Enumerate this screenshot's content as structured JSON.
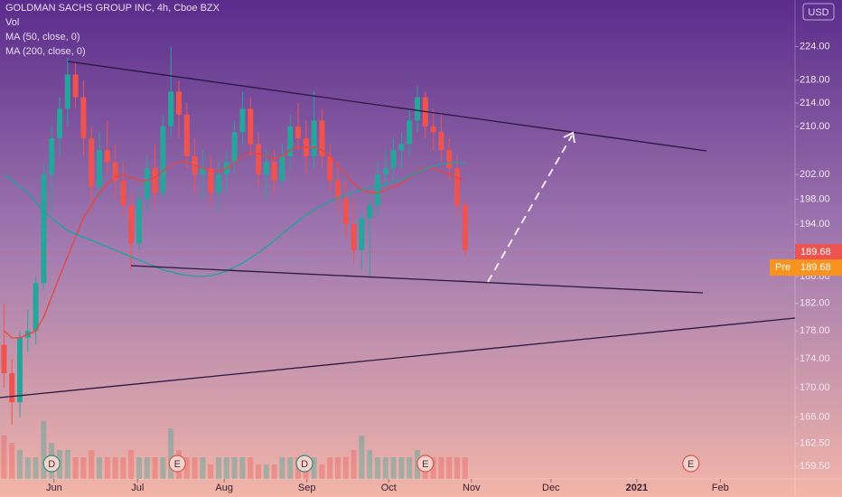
{
  "chart_data": {
    "type": "candlestick",
    "title": "GOLDMAN SACHS GROUP INC, 4h, Cboe BZX",
    "indicators": [
      "Vol",
      "MA (50, close, 0)",
      "MA (200, close, 0)"
    ],
    "currency": "USD",
    "log_scale": true,
    "ylim": [
      157.9,
      232.6
    ],
    "yticks": [
      {
        "value": 224,
        "label": "224.00"
      },
      {
        "value": 218,
        "label": "218.00"
      },
      {
        "value": 214,
        "label": "214.00"
      },
      {
        "value": 210,
        "label": "210.00"
      },
      {
        "value": 202,
        "label": "202.00"
      },
      {
        "value": 198,
        "label": "198.00"
      },
      {
        "value": 194,
        "label": "194.00"
      },
      {
        "value": 186,
        "label": "186.00"
      },
      {
        "value": 182,
        "label": "182.00"
      },
      {
        "value": 178,
        "label": "178.00"
      },
      {
        "value": 174,
        "label": "174.00"
      },
      {
        "value": 170,
        "label": "170.00"
      },
      {
        "value": 166,
        "label": "166.00"
      },
      {
        "value": 162.5,
        "label": "162.50"
      },
      {
        "value": 159.5,
        "label": "159.50"
      }
    ],
    "xlim": [
      -0.5,
      99.5
    ],
    "xticks": [
      {
        "value": 6.3,
        "label": "Jun"
      },
      {
        "value": 16.8,
        "label": "Jul"
      },
      {
        "value": 27.7,
        "label": "Aug"
      },
      {
        "value": 38.1,
        "label": "Sep"
      },
      {
        "value": 48.4,
        "label": "Oct"
      },
      {
        "value": 58.8,
        "label": "Nov"
      },
      {
        "value": 68.8,
        "label": "Dec"
      },
      {
        "value": 79.6,
        "label": "2021"
      },
      {
        "value": 90.1,
        "label": "Feb"
      }
    ],
    "up_color": "#26a69a",
    "down_color": "#ef5350",
    "open": [
      176,
      172,
      168,
      177,
      178,
      185,
      202,
      208,
      213,
      219,
      215,
      208,
      200,
      206,
      204,
      201,
      197,
      191,
      198,
      203,
      199,
      210,
      216,
      212,
      205,
      202,
      203,
      199,
      202,
      204,
      209,
      213,
      207,
      202,
      204,
      201,
      205,
      210,
      208,
      205,
      211,
      205,
      201,
      198,
      194,
      190,
      195,
      197,
      202,
      203,
      206,
      207,
      211,
      215,
      210,
      209,
      206,
      203,
      197
    ],
    "high": [
      182,
      174,
      178,
      181,
      186,
      204,
      210,
      215,
      222,
      221,
      218,
      210,
      209,
      211,
      207,
      204,
      199,
      200,
      205,
      207,
      212,
      224,
      218,
      214,
      208,
      206,
      205,
      204,
      206,
      211,
      216,
      215,
      209,
      206,
      206,
      207,
      212,
      214,
      211,
      216,
      213,
      207,
      204,
      201,
      198,
      196,
      199,
      204,
      206,
      208,
      209,
      213,
      217,
      216,
      213,
      212,
      208,
      205,
      198
    ],
    "low": [
      170,
      165,
      166,
      175,
      176,
      184,
      196,
      205,
      210,
      213,
      205,
      196,
      198,
      202,
      198,
      195,
      187,
      190,
      196,
      197,
      198,
      208,
      208,
      203,
      199,
      198,
      197,
      196,
      199,
      202,
      207,
      205,
      200,
      198,
      199,
      200,
      203,
      206,
      202,
      203,
      203,
      199,
      196,
      192,
      188,
      187,
      186,
      195,
      199,
      201,
      203,
      205,
      209,
      208,
      206,
      204,
      201,
      195,
      189
    ],
    "close": [
      172,
      168,
      177,
      178,
      185,
      202,
      208,
      213,
      219,
      215,
      208,
      200,
      206,
      204,
      201,
      197,
      191,
      198,
      203,
      199,
      210,
      216,
      212,
      205,
      202,
      203,
      199,
      202,
      204,
      209,
      213,
      207,
      202,
      204,
      201,
      205,
      210,
      208,
      205,
      211,
      205,
      201,
      198,
      194,
      190,
      195,
      197,
      202,
      203,
      206,
      207,
      211,
      215,
      210,
      209,
      206,
      203,
      197,
      190
    ],
    "volume": [
      6,
      5,
      4,
      3,
      3,
      8,
      5,
      4,
      4,
      3,
      3,
      4,
      3,
      3,
      3,
      3,
      4,
      3,
      3,
      3,
      3,
      7,
      4,
      3,
      3,
      3,
      2,
      3,
      3,
      3,
      3,
      3,
      2,
      2,
      2,
      3,
      3,
      3,
      3,
      3,
      2,
      3,
      3,
      3,
      4,
      6,
      4,
      3,
      3,
      3,
      3,
      3,
      4,
      3,
      3,
      3,
      3,
      3,
      3
    ],
    "vlim": [
      0,
      10
    ],
    "series": [
      {
        "name": "MA (50, close, 0)",
        "color": "#e8453c",
        "values": [
          178,
          177,
          177,
          177.5,
          178,
          180,
          183,
          186,
          189,
          192,
          195,
          197,
          199,
          200.5,
          201.5,
          202,
          201.5,
          201,
          201,
          201.5,
          202.5,
          203.5,
          204,
          204,
          203.5,
          203,
          202.5,
          202.5,
          203,
          204,
          205,
          205.5,
          205.5,
          205,
          204.5,
          205,
          206,
          206.5,
          206.5,
          206.5,
          206,
          205,
          203.5,
          202,
          200.5,
          199.5,
          199,
          199,
          199.5,
          200,
          200.5,
          201.5,
          202.5,
          203,
          203,
          202.5,
          202,
          201.5,
          201
        ]
      },
      {
        "name": "MA (200, close, 0)",
        "color": "#1fa39b",
        "values": [
          202,
          201,
          200,
          199,
          197.5,
          196,
          195,
          194,
          193,
          192.5,
          192,
          191.5,
          191,
          190.5,
          190,
          189.5,
          189,
          188.5,
          188,
          187.5,
          187,
          186.7,
          186.4,
          186.2,
          186,
          186,
          186.1,
          186.4,
          186.8,
          187.4,
          188,
          188.8,
          189.6,
          190.5,
          191.5,
          192.5,
          193.5,
          194.5,
          195.5,
          196.3,
          197,
          197.6,
          198.2,
          198.7,
          199.1,
          199.5,
          199.8,
          200.1,
          200.4,
          200.8,
          201.2,
          201.7,
          202.3,
          202.9,
          203.4,
          203.7,
          203.9,
          204,
          203.8
        ]
      }
    ],
    "last_price": 189.68,
    "premarket_label": "Pre",
    "premarket_price": 189.68,
    "events": [
      {
        "label": "D",
        "x": 6
      },
      {
        "label": "E",
        "x": 21.8
      },
      {
        "label": "D",
        "x": 37.8
      },
      {
        "label": "E",
        "x": 53
      },
      {
        "label": "E",
        "x": 86.4
      }
    ]
  }
}
